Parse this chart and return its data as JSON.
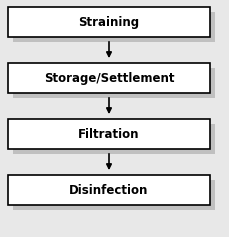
{
  "boxes": [
    {
      "label": "Straining"
    },
    {
      "label": "Storage/Settlement"
    },
    {
      "label": "Filtration"
    },
    {
      "label": "Disinfection"
    }
  ],
  "box_facecolor": "#ffffff",
  "box_edgecolor": "#000000",
  "shadow_color": "#c0c0c0",
  "arrow_color": "#000000",
  "bg_color": "#e8e8e8",
  "font_size": 8.5,
  "font_weight": "bold",
  "linewidth": 1.2
}
